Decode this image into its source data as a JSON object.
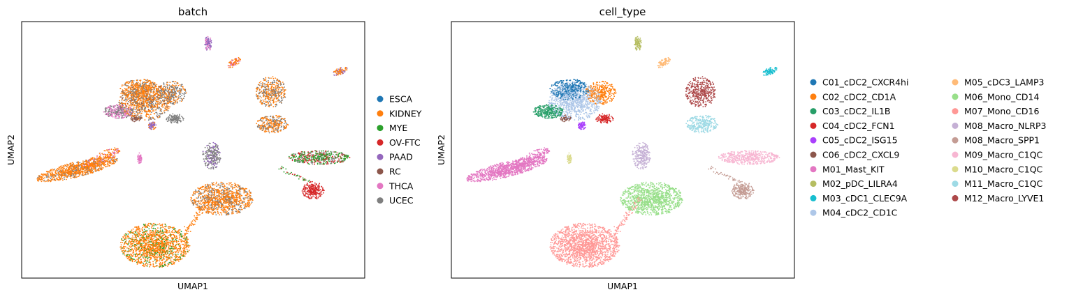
{
  "chart_data": [
    {
      "type": "scatter",
      "title": "batch",
      "xlabel": "UMAP1",
      "ylabel": "UMAP2",
      "grid": false,
      "legend": "outside-right",
      "legend_columns": 1,
      "series": [
        {
          "name": "ESCA",
          "color": "#1f77b4"
        },
        {
          "name": "KIDNEY",
          "color": "#ff7f0e"
        },
        {
          "name": "MYE",
          "color": "#2ca02c"
        },
        {
          "name": "OV-FTC",
          "color": "#d62728"
        },
        {
          "name": "PAAD",
          "color": "#9467bd"
        },
        {
          "name": "RC",
          "color": "#8c564b"
        },
        {
          "name": "THCA",
          "color": "#e377c2"
        },
        {
          "name": "UCEC",
          "color": "#7f7f7f"
        }
      ]
    },
    {
      "type": "scatter",
      "title": "cell_type",
      "xlabel": "UMAP1",
      "ylabel": "UMAP2",
      "grid": false,
      "legend": "outside-right",
      "legend_columns": 2,
      "series": [
        {
          "name": "C01_cDC2_CXCR4hi",
          "color": "#1f77b4"
        },
        {
          "name": "C02_cDC2_CD1A",
          "color": "#ff7f0e"
        },
        {
          "name": "C03_cDC2_IL1B",
          "color": "#279e68"
        },
        {
          "name": "C04_cDC2_FCN1",
          "color": "#d62728"
        },
        {
          "name": "C05_cDC2_ISG15",
          "color": "#aa40fc"
        },
        {
          "name": "C06_cDC2_CXCL9",
          "color": "#8c564b"
        },
        {
          "name": "M01_Mast_KIT",
          "color": "#e377c2"
        },
        {
          "name": "M02_pDC_LILRA4",
          "color": "#b5bd61"
        },
        {
          "name": "M03_cDC1_CLEC9A",
          "color": "#17becf"
        },
        {
          "name": "M04_cDC2_CD1C",
          "color": "#aec7e8"
        },
        {
          "name": "M05_cDC3_LAMP3",
          "color": "#ffbb78"
        },
        {
          "name": "M06_Mono_CD14",
          "color": "#98df8a"
        },
        {
          "name": "M07_Mono_CD16",
          "color": "#ff9896"
        },
        {
          "name": "M08_Macro_NLRP3",
          "color": "#c5b0d5"
        },
        {
          "name": "M08_Macro_SPP1",
          "color": "#c49c94"
        },
        {
          "name": "M09_Macro_C1QC",
          "color": "#f7b6d2"
        },
        {
          "name": "M10_Macro_C1QC",
          "color": "#dbdb8d"
        },
        {
          "name": "M11_Macro_C1QC",
          "color": "#9edae5"
        },
        {
          "name": "M12_Macro_LYVE1",
          "color": "#ad494a"
        }
      ]
    }
  ]
}
